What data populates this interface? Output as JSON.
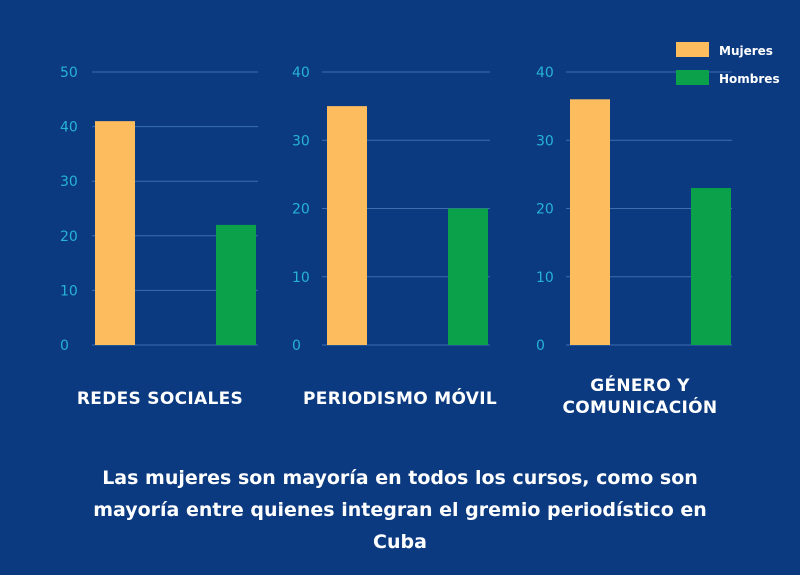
{
  "chart_data": [
    {
      "type": "bar",
      "categories": [
        "Mujeres",
        "Hombres"
      ],
      "values": [
        41,
        22
      ],
      "xlabel": "REDES SOCIALES",
      "ylim": [
        0,
        50
      ],
      "yticks": [
        0,
        10,
        20,
        30,
        40,
        50
      ]
    },
    {
      "type": "bar",
      "categories": [
        "Mujeres",
        "Hombres"
      ],
      "values": [
        35,
        20
      ],
      "xlabel": "PERIODISMO MÓVIL",
      "ylim": [
        0,
        40
      ],
      "yticks": [
        0,
        10,
        20,
        30,
        40
      ]
    },
    {
      "type": "bar",
      "categories": [
        "Mujeres",
        "Hombres"
      ],
      "values": [
        36,
        23
      ],
      "xlabel": "GÉNERO Y COMUNICACIÓN",
      "ylim": [
        0,
        40
      ],
      "yticks": [
        0,
        10,
        20,
        30,
        40
      ]
    }
  ],
  "legend": {
    "placement": "top-right",
    "items": [
      {
        "label": "Mujeres",
        "color": "#fdbd5e"
      },
      {
        "label": "Hombres",
        "color": "#0aa14a"
      }
    ]
  },
  "colors": {
    "background": "#0b3a80",
    "mujeres": "#fdbd5e",
    "hombres": "#0aa14a",
    "tick": "#27b3d6",
    "grid": "#3b6fae"
  },
  "caption": "Las mujeres son mayoría en todos los cursos, como son mayoría entre quienes integran el gremio periodístico en Cuba"
}
